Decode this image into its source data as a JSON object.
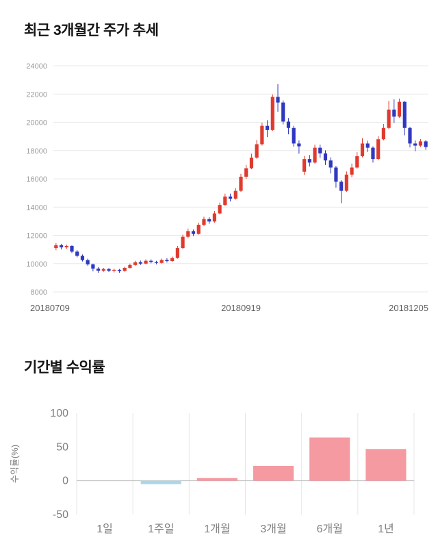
{
  "sections": {
    "price_trend": {
      "title": "최근 3개월간 주가 추세"
    },
    "period_returns": {
      "title": "기간별 수익률"
    }
  },
  "chart_data": [
    {
      "type": "candlestick",
      "title": "최근 3개월간 주가 추세",
      "ylim": [
        8000,
        24000
      ],
      "y_ticks": [
        8000,
        10000,
        12000,
        14000,
        16000,
        18000,
        20000,
        22000,
        24000
      ],
      "x_labels": [
        "20180709",
        "20180919",
        "20181205"
      ],
      "up_color": "#e03a2e",
      "down_color": "#2f38c0",
      "grid_color": "#e9e9e9",
      "candle_format": "[open, close, low, high]",
      "candles": [
        [
          11100,
          11300,
          10950,
          11450
        ],
        [
          11300,
          11150,
          11000,
          11400
        ],
        [
          11150,
          11250,
          11050,
          11350
        ],
        [
          11250,
          10850,
          10750,
          11300
        ],
        [
          10850,
          10550,
          10450,
          10950
        ],
        [
          10550,
          10250,
          10150,
          10650
        ],
        [
          10250,
          9950,
          9850,
          10350
        ],
        [
          9950,
          9650,
          9450,
          10000
        ],
        [
          9650,
          9500,
          9350,
          9750
        ],
        [
          9500,
          9620,
          9420,
          9700
        ],
        [
          9620,
          9500,
          9400,
          9680
        ],
        [
          9500,
          9560,
          9380,
          9650
        ],
        [
          9560,
          9480,
          9350,
          9620
        ],
        [
          9480,
          9700,
          9430,
          9780
        ],
        [
          9700,
          9900,
          9650,
          10000
        ],
        [
          9900,
          10100,
          9850,
          10200
        ],
        [
          10100,
          10000,
          9900,
          10220
        ],
        [
          10000,
          10200,
          9950,
          10300
        ],
        [
          10200,
          10120,
          10020,
          10300
        ],
        [
          10120,
          10050,
          9950,
          10200
        ],
        [
          10050,
          10260,
          10000,
          10360
        ],
        [
          10260,
          10180,
          10080,
          10380
        ],
        [
          10180,
          10400,
          10120,
          10500
        ],
        [
          10400,
          11100,
          10350,
          11250
        ],
        [
          11100,
          11900,
          11050,
          12050
        ],
        [
          11900,
          12300,
          11800,
          12480
        ],
        [
          12300,
          12100,
          11950,
          12420
        ],
        [
          12100,
          12750,
          12050,
          12900
        ],
        [
          12750,
          13150,
          12650,
          13320
        ],
        [
          13150,
          12980,
          12820,
          13280
        ],
        [
          12980,
          13550,
          12900,
          13720
        ],
        [
          13550,
          14150,
          13480,
          14320
        ],
        [
          14150,
          14750,
          14080,
          14950
        ],
        [
          14750,
          14600,
          14400,
          14950
        ],
        [
          14600,
          15150,
          14520,
          15350
        ],
        [
          15150,
          16150,
          15080,
          16350
        ],
        [
          16150,
          16750,
          16000,
          16980
        ],
        [
          16750,
          17500,
          16680,
          17780
        ],
        [
          17500,
          18450,
          17420,
          18750
        ],
        [
          18450,
          19750,
          18350,
          19980
        ],
        [
          19750,
          19450,
          18950,
          20150
        ],
        [
          19450,
          21800,
          19380,
          21980
        ],
        [
          21800,
          21400,
          20750,
          22700
        ],
        [
          21400,
          20050,
          19850,
          21550
        ],
        [
          20050,
          19600,
          19150,
          20300
        ],
        [
          19600,
          18500,
          18280,
          19750
        ],
        [
          18500,
          18300,
          17780,
          18720
        ],
        [
          16500,
          17400,
          16280,
          17620
        ],
        [
          17400,
          17150,
          16880,
          17680
        ],
        [
          17150,
          18200,
          17080,
          18420
        ],
        [
          18200,
          17800,
          17480,
          18420
        ],
        [
          17800,
          17300,
          16980,
          18020
        ],
        [
          17300,
          16800,
          16380,
          17520
        ],
        [
          16800,
          15800,
          15380,
          16920
        ],
        [
          15800,
          15150,
          14280,
          15900
        ],
        [
          15150,
          16300,
          15080,
          16520
        ],
        [
          16300,
          16800,
          16120,
          17080
        ],
        [
          16800,
          17600,
          16720,
          17880
        ],
        [
          17600,
          18500,
          17520,
          18880
        ],
        [
          18500,
          18200,
          17900,
          18700
        ],
        [
          18200,
          17400,
          17150,
          18300
        ],
        [
          17400,
          18800,
          17320,
          19020
        ],
        [
          18800,
          19600,
          18720,
          19880
        ],
        [
          19600,
          20900,
          19520,
          21520
        ],
        [
          20900,
          20400,
          19950,
          21620
        ],
        [
          20400,
          21450,
          20320,
          21680
        ],
        [
          21450,
          19600,
          19080,
          21500
        ],
        [
          19600,
          18500,
          18220,
          19680
        ],
        [
          18500,
          18350,
          17950,
          18720
        ],
        [
          18350,
          18650,
          18250,
          18820
        ],
        [
          18650,
          18250,
          18050,
          18750
        ]
      ]
    },
    {
      "type": "bar",
      "title": "기간별 수익률",
      "categories": [
        "1일",
        "1주일",
        "1개월",
        "3개월",
        "6개월",
        "1년"
      ],
      "values": [
        0,
        -5,
        4,
        22,
        64,
        47
      ],
      "ylabel": "수익률(%)",
      "y_ticks": [
        100,
        50,
        0,
        -50
      ],
      "ylim": [
        -50,
        100
      ],
      "positive_color": "#f59aa1",
      "negative_color": "#a8d8e8",
      "grid_color": "#e6e6e6",
      "zero_line_color": "#bbbbbb",
      "legend": "none",
      "grid": "vertical"
    }
  ]
}
